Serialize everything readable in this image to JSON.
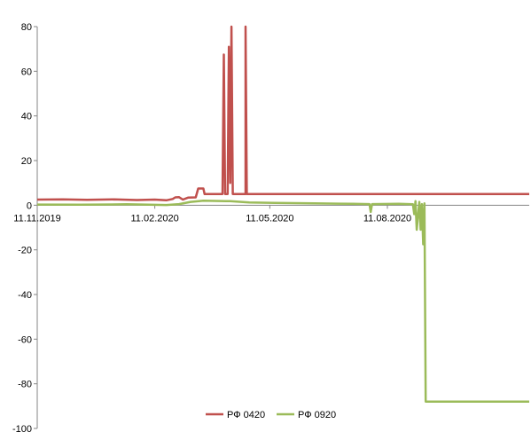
{
  "chart_data": {
    "type": "line",
    "title": "",
    "xlabel": "",
    "ylabel": "",
    "ylim": [
      -100,
      80
    ],
    "y_ticks": [
      80,
      60,
      40,
      20,
      0,
      -20,
      -40,
      -60,
      -80,
      -100
    ],
    "x_range": [
      "2019-11-11",
      "2020-11-30"
    ],
    "x_ticks": [
      {
        "date": "2019-11-11",
        "label": "11.11.2019"
      },
      {
        "date": "2020-02-11",
        "label": "11.02.2020"
      },
      {
        "date": "2020-05-11",
        "label": "11.05.2020"
      },
      {
        "date": "2020-08-11",
        "label": "11.08.2020"
      }
    ],
    "grid": false,
    "legend_position": "bottom",
    "series": [
      {
        "name": "РФ 0420",
        "color": "#c0504d",
        "points": [
          [
            "2019-11-11",
            2.5
          ],
          [
            "2019-12-01",
            2.6
          ],
          [
            "2019-12-20",
            2.4
          ],
          [
            "2020-01-10",
            2.6
          ],
          [
            "2020-01-28",
            2.3
          ],
          [
            "2020-02-11",
            2.5
          ],
          [
            "2020-02-20",
            2.2
          ],
          [
            "2020-02-25",
            2.8
          ],
          [
            "2020-02-27",
            3.5
          ],
          [
            "2020-03-01",
            3.6
          ],
          [
            "2020-03-04",
            2.5
          ],
          [
            "2020-03-08",
            3.4
          ],
          [
            "2020-03-14",
            3.5
          ],
          [
            "2020-03-16",
            7.5
          ],
          [
            "2020-03-20",
            7.5
          ],
          [
            "2020-03-21",
            5
          ],
          [
            "2020-04-04",
            5
          ],
          [
            "2020-04-05",
            67.5
          ],
          [
            "2020-04-06",
            5
          ],
          [
            "2020-04-08",
            5
          ],
          [
            "2020-04-09",
            71
          ],
          [
            "2020-04-10",
            10
          ],
          [
            "2020-04-11",
            80
          ],
          [
            "2020-04-12",
            5
          ],
          [
            "2020-04-22",
            5
          ],
          [
            "2020-04-22",
            80
          ],
          [
            "2020-04-23",
            5
          ],
          [
            "2020-11-30",
            5
          ]
        ]
      },
      {
        "name": "РФ 0920",
        "color": "#9bbb59",
        "points": [
          [
            "2019-11-11",
            0.3
          ],
          [
            "2019-12-15",
            0.2
          ],
          [
            "2020-01-20",
            0.4
          ],
          [
            "2020-02-20",
            0.1
          ],
          [
            "2020-03-01",
            0.5
          ],
          [
            "2020-03-10",
            1.5
          ],
          [
            "2020-03-20",
            2
          ],
          [
            "2020-04-10",
            1.8
          ],
          [
            "2020-04-25",
            1.2
          ],
          [
            "2020-05-15",
            1
          ],
          [
            "2020-06-15",
            0.8
          ],
          [
            "2020-07-15",
            0.6
          ],
          [
            "2020-07-28",
            0.5
          ],
          [
            "2020-07-29",
            -3
          ],
          [
            "2020-07-30",
            0.5
          ],
          [
            "2020-08-20",
            0.6
          ],
          [
            "2020-08-31",
            0.4
          ],
          [
            "2020-09-01",
            -4
          ],
          [
            "2020-09-02",
            1.8
          ],
          [
            "2020-09-03",
            -11
          ],
          [
            "2020-09-05",
            1.5
          ],
          [
            "2020-09-06",
            -11
          ],
          [
            "2020-09-07",
            0.5
          ],
          [
            "2020-09-08",
            -17.5
          ],
          [
            "2020-09-09",
            0.8
          ],
          [
            "2020-09-10",
            -88
          ],
          [
            "2020-11-30",
            -88
          ]
        ]
      }
    ]
  }
}
